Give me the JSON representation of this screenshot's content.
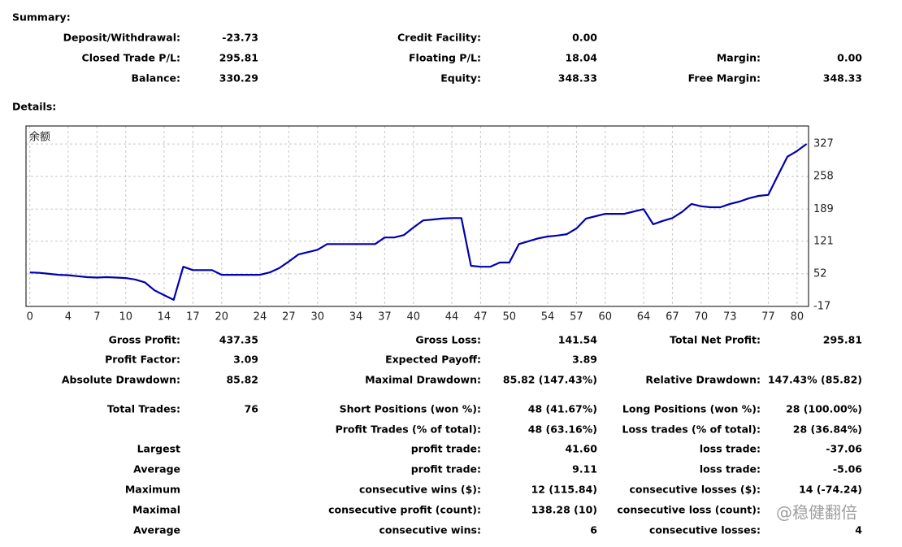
{
  "summary": {
    "title": "Summary:",
    "rows": [
      [
        "Deposit/Withdrawal:",
        "-23.73",
        "Credit Facility:",
        "0.00",
        null,
        null
      ],
      [
        "Closed Trade P/L:",
        "295.81",
        "Floating P/L:",
        "18.04",
        "Margin:",
        "0.00"
      ],
      [
        "Balance:",
        "330.29",
        "Equity:",
        "348.33",
        "Free Margin:",
        "348.33"
      ]
    ]
  },
  "details": {
    "title": "Details:",
    "rows": [
      [
        "Gross Profit:",
        "437.35",
        "Gross Loss:",
        "141.54",
        "Total Net Profit:",
        "295.81"
      ],
      [
        "Profit Factor:",
        "3.09",
        "Expected Payoff:",
        "3.89",
        null,
        null
      ],
      [
        "Absolute Drawdown:",
        "85.82",
        "Maximal Drawdown:",
        "85.82 (147.43%)",
        "Relative Drawdown:",
        "147.43% (85.82)"
      ],
      [
        "Total Trades:",
        "76",
        "Short Positions (won %):",
        "48 (41.67%)",
        "Long Positions (won %):",
        "28 (100.00%)"
      ],
      [
        null,
        null,
        "Profit Trades (% of total):",
        "48 (63.16%)",
        "Loss trades (% of total):",
        "28 (36.84%)"
      ],
      [
        "Largest",
        null,
        "profit trade:",
        "41.60",
        "loss trade:",
        "-37.06"
      ],
      [
        "Average",
        null,
        "profit trade:",
        "9.11",
        "loss trade:",
        "-5.06"
      ],
      [
        "Maximum",
        null,
        "consecutive wins ($):",
        "12 (115.84)",
        "consecutive losses ($):",
        "14 (-74.24)"
      ],
      [
        "Maximal",
        null,
        "consecutive profit (count):",
        "138.28 (10)",
        "consecutive loss (count):",
        null
      ],
      [
        "Average",
        null,
        "consecutive wins:",
        "6",
        "consecutive losses:",
        "4"
      ]
    ]
  },
  "watermark": "@稳健翻倍",
  "chart_data": {
    "type": "line",
    "title": "余额",
    "x": [
      0,
      1,
      2,
      3,
      4,
      5,
      6,
      7,
      8,
      9,
      10,
      11,
      12,
      13,
      14,
      15,
      16,
      17,
      18,
      19,
      20,
      21,
      22,
      23,
      24,
      25,
      26,
      27,
      28,
      29,
      30,
      31,
      32,
      33,
      34,
      35,
      36,
      37,
      38,
      39,
      40,
      41,
      42,
      43,
      44,
      45,
      46,
      47,
      48,
      49,
      50,
      51,
      52,
      53,
      54,
      55,
      56,
      57,
      58,
      59,
      60,
      61,
      62,
      63,
      64,
      65,
      66,
      67,
      68,
      69,
      70,
      71,
      72,
      73,
      74,
      75,
      76,
      77,
      78,
      79,
      80,
      81
    ],
    "values": [
      55,
      54,
      52,
      50,
      49,
      47,
      45,
      44,
      45,
      44,
      43,
      40,
      34,
      17,
      7,
      -3,
      67,
      60,
      60,
      60,
      50,
      50,
      50,
      50,
      50,
      55,
      64,
      78,
      93,
      98,
      103,
      115,
      115,
      115,
      115,
      115,
      115,
      129,
      129,
      134,
      150,
      165,
      167,
      169,
      170,
      170,
      69,
      67,
      67,
      76,
      76,
      115,
      121,
      127,
      131,
      133,
      136,
      148,
      169,
      174,
      179,
      179,
      179,
      184,
      189,
      157,
      164,
      170,
      183,
      200,
      195,
      193,
      193,
      200,
      205,
      212,
      217,
      219,
      260,
      300,
      312,
      327
    ],
    "color": "#0000b0",
    "xlim": [
      -0.4,
      81.2
    ],
    "xticks": [
      0,
      4,
      7,
      10,
      14,
      17,
      20,
      24,
      27,
      30,
      34,
      37,
      40,
      44,
      47,
      50,
      54,
      57,
      60,
      64,
      67,
      70,
      73,
      77,
      80
    ],
    "ylim": [
      -17,
      365
    ],
    "yticks": [
      -17,
      52,
      121,
      189,
      258,
      327
    ],
    "grid": true
  }
}
